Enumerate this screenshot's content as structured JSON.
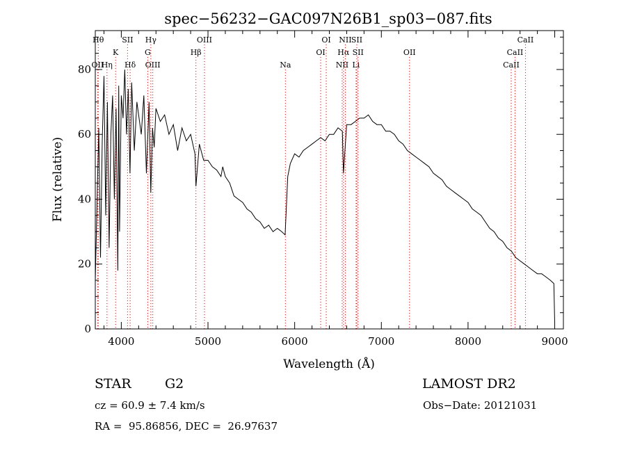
{
  "chart_data": {
    "type": "line",
    "title": "spec−56232−GAC097N26B1_sp03−087.fits",
    "xlabel": "Wavelength (Å)",
    "ylabel": "Flux (relative)",
    "xlim": [
      3700,
      9100
    ],
    "ylim": [
      0,
      92
    ],
    "xticks": [
      4000,
      5000,
      6000,
      7000,
      8000,
      9000
    ],
    "yticks": [
      0,
      20,
      40,
      60,
      80
    ],
    "grid": false,
    "line_color": "#000000",
    "marker_color": "#cc0000",
    "series": [
      {
        "x": [
          3700,
          3740,
          3760,
          3780,
          3800,
          3820,
          3840,
          3860,
          3880,
          3900,
          3920,
          3940,
          3960,
          3970,
          3980,
          4000,
          4020,
          4040,
          4060,
          4080,
          4100,
          4120,
          4150,
          4180,
          4200,
          4230,
          4260,
          4290,
          4320,
          4340,
          4360,
          4380,
          4400,
          4450,
          4500,
          4550,
          4600,
          4650,
          4700,
          4750,
          4800,
          4850,
          4861,
          4900,
          4950,
          5000,
          5050,
          5100,
          5150,
          5170,
          5200,
          5250,
          5300,
          5350,
          5400,
          5450,
          5500,
          5550,
          5600,
          5650,
          5700,
          5750,
          5800,
          5850,
          5890,
          5920,
          5950,
          6000,
          6050,
          6100,
          6150,
          6200,
          6250,
          6300,
          6350,
          6400,
          6450,
          6500,
          6550,
          6563,
          6600,
          6650,
          6700,
          6750,
          6800,
          6850,
          6900,
          6950,
          7000,
          7050,
          7100,
          7150,
          7200,
          7250,
          7300,
          7350,
          7400,
          7450,
          7500,
          7550,
          7600,
          7650,
          7700,
          7750,
          7800,
          7850,
          7900,
          7950,
          8000,
          8050,
          8100,
          8150,
          8200,
          8250,
          8300,
          8350,
          8400,
          8450,
          8500,
          8550,
          8600,
          8650,
          8700,
          8750,
          8800,
          8850,
          8900,
          8950,
          8990,
          9000
        ],
        "values": [
          15,
          62,
          22,
          58,
          78,
          35,
          70,
          25,
          60,
          72,
          40,
          68,
          18,
          75,
          30,
          72,
          65,
          80,
          60,
          74,
          48,
          76,
          55,
          70,
          66,
          60,
          72,
          48,
          70,
          42,
          62,
          56,
          68,
          64,
          66,
          60,
          63,
          55,
          62,
          58,
          60,
          54,
          44,
          57,
          52,
          52,
          50,
          49,
          47,
          50,
          47,
          45,
          41,
          40,
          39,
          37,
          36,
          34,
          33,
          31,
          32,
          30,
          31,
          30,
          29,
          47,
          51,
          54,
          53,
          55,
          56,
          57,
          58,
          59,
          58,
          60,
          60,
          62,
          61,
          48,
          63,
          63,
          64,
          65,
          65,
          66,
          64,
          63,
          63,
          61,
          61,
          60,
          58,
          57,
          55,
          54,
          53,
          52,
          51,
          50,
          48,
          47,
          46,
          44,
          43,
          42,
          41,
          40,
          39,
          37,
          36,
          35,
          33,
          31,
          30,
          28,
          27,
          25,
          24,
          22,
          21,
          20,
          19,
          18,
          17,
          17,
          16,
          15,
          14,
          2
        ]
      }
    ],
    "line_markers": [
      {
        "label": "Hθ",
        "x": 3734,
        "row": 0
      },
      {
        "label": "OII",
        "x": 3727,
        "row": 2
      },
      {
        "label": "Hη",
        "x": 3835,
        "row": 2
      },
      {
        "label": "K",
        "x": 3934,
        "row": 1
      },
      {
        "label": "SII",
        "x": 4072,
        "row": 0
      },
      {
        "label": "Hδ",
        "x": 4102,
        "row": 2
      },
      {
        "label": "Hγ",
        "x": 4341,
        "row": 0
      },
      {
        "label": "G",
        "x": 4305,
        "row": 1
      },
      {
        "label": "OIII",
        "x": 4363,
        "row": 2
      },
      {
        "label": "OIII",
        "x": 4959,
        "row": 0
      },
      {
        "label": "Hβ",
        "x": 4861,
        "row": 1
      },
      {
        "label": "Na",
        "x": 5893,
        "row": 2
      },
      {
        "label": "OI",
        "x": 6364,
        "row": 0
      },
      {
        "label": "OI",
        "x": 6300,
        "row": 1
      },
      {
        "label": "NII",
        "x": 6584,
        "row": 0
      },
      {
        "label": "SII",
        "x": 6717,
        "row": 0
      },
      {
        "label": "Hα",
        "x": 6563,
        "row": 1
      },
      {
        "label": "SII",
        "x": 6731,
        "row": 1
      },
      {
        "label": "NII",
        "x": 6548,
        "row": 2
      },
      {
        "label": "Li",
        "x": 6708,
        "row": 2
      },
      {
        "label": "OII",
        "x": 7325,
        "row": 1
      },
      {
        "label": "CaII",
        "x": 8662,
        "row": 0
      },
      {
        "label": "CaII",
        "x": 8542,
        "row": 1
      },
      {
        "label": "CaII",
        "x": 8498,
        "row": 2
      }
    ]
  },
  "info": {
    "object_type": "STAR",
    "subclass": "G2",
    "survey": "LAMOST DR2",
    "redshift": "cz = 60.9 ± 7.4 km/s",
    "obs_date": "Obs−Date: 20121031",
    "coords": "RA =  95.86856, DEC =  26.97637"
  }
}
